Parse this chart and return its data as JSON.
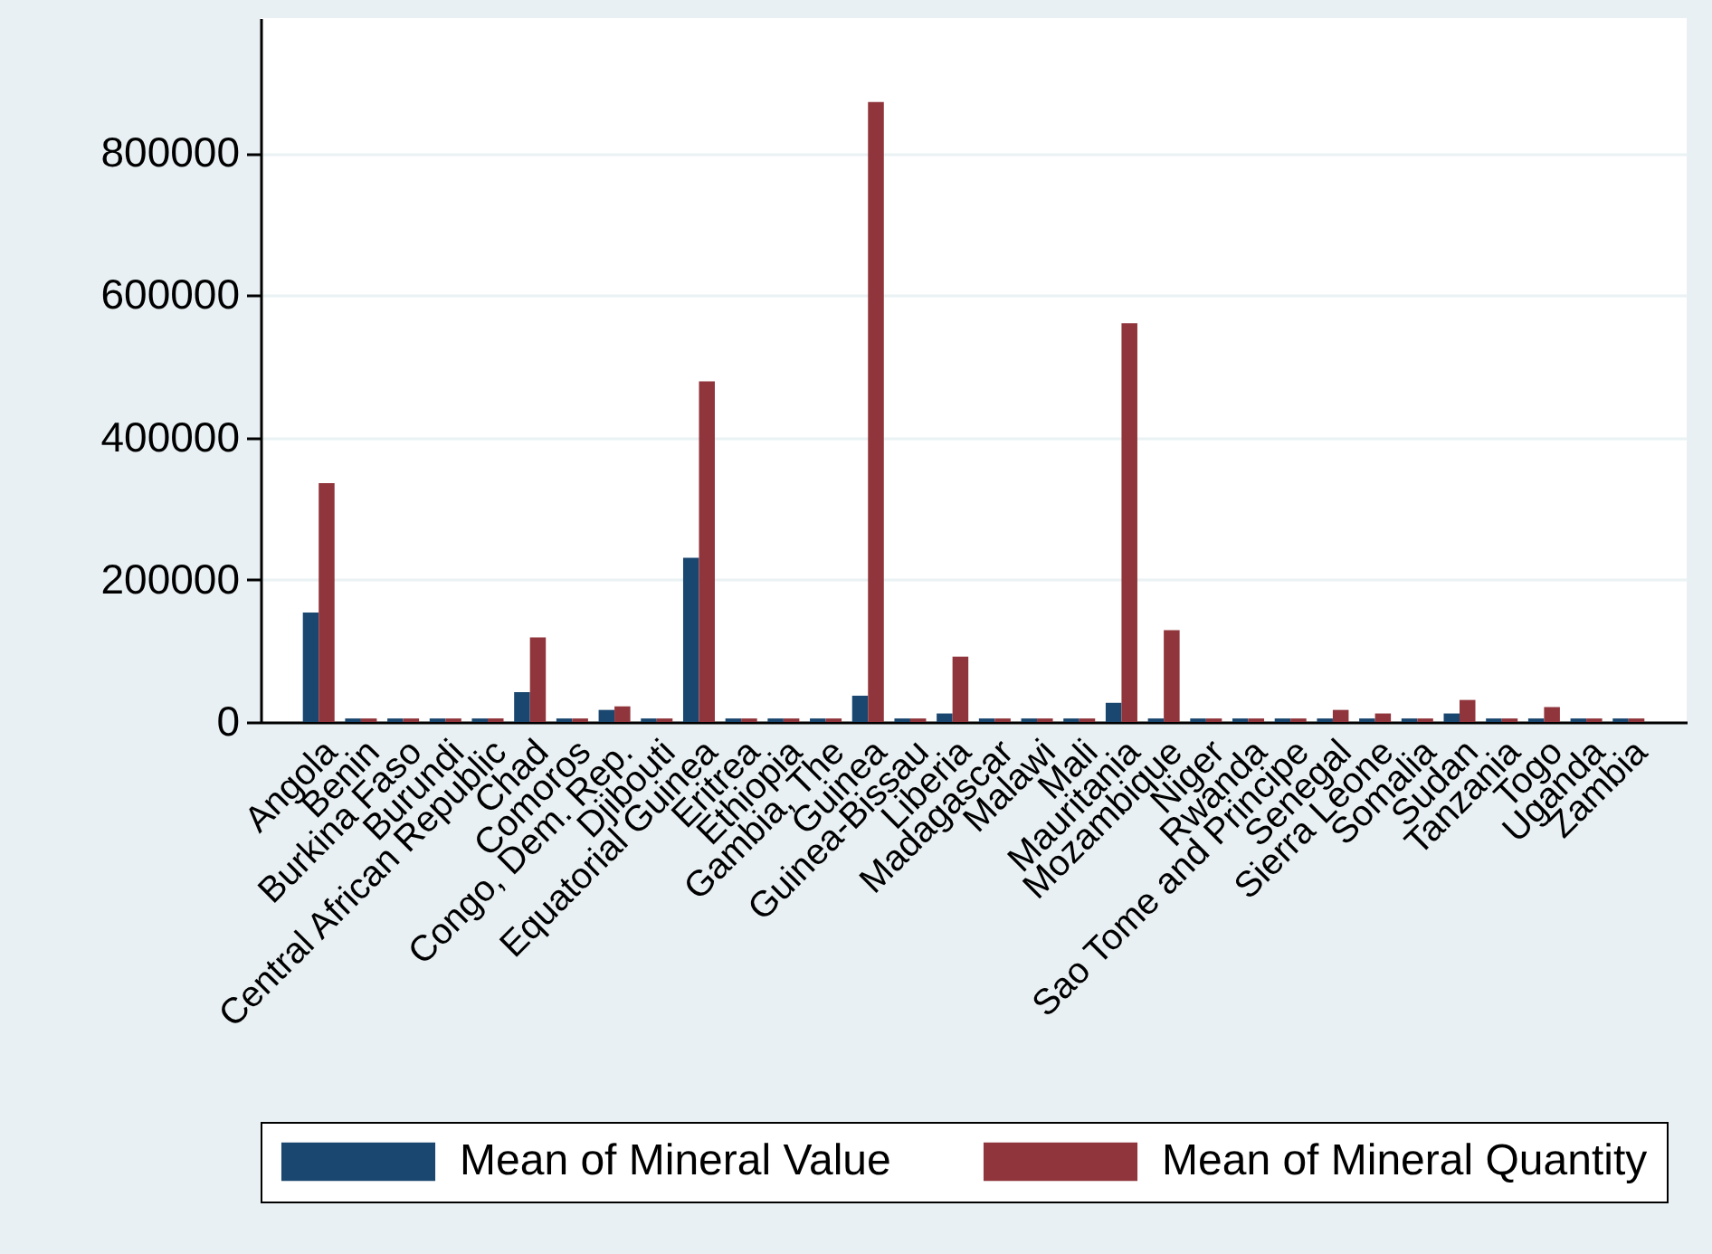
{
  "chart_data": {
    "type": "bar",
    "categories": [
      "Angola",
      "Benin",
      "Burkina Faso",
      "Burundi",
      "Central African Republic",
      "Chad",
      "Comoros",
      "Congo, Dem. Rep.",
      "Djibouti",
      "Equatorial Guinea",
      "Eritrea",
      "Ethiopia",
      "Gambia, The",
      "Guinea",
      "Guinea-Bissau",
      "Liberia",
      "Madagascar",
      "Malawi",
      "Mali",
      "Mauritania",
      "Mozambique",
      "Niger",
      "Rwanda",
      "Sao Tome and Principe",
      "Senegal",
      "Sierra Leone",
      "Somalia",
      "Sudan",
      "Tanzania",
      "Togo",
      "Uganda",
      "Zambia"
    ],
    "series": [
      {
        "name": "Mean of Mineral Value",
        "color": "#1a476f",
        "values": [
          154000,
          5000,
          5000,
          5000,
          5000,
          42000,
          5000,
          17000,
          5000,
          231000,
          5000,
          5000,
          5000,
          37000,
          5000,
          12000,
          5000,
          5000,
          5000,
          27000,
          5000,
          5000,
          5000,
          5000,
          5000,
          5000,
          5000,
          12000,
          5000,
          5000,
          5000,
          5000
        ]
      },
      {
        "name": "Mean of Mineral Quantity",
        "color": "#90353b",
        "values": [
          336000,
          5000,
          5000,
          5000,
          5000,
          119000,
          5000,
          22000,
          5000,
          479000,
          5000,
          5000,
          5000,
          872000,
          5000,
          92000,
          5000,
          5000,
          5000,
          561000,
          129000,
          5000,
          5000,
          5000,
          17000,
          12000,
          5000,
          31000,
          5000,
          21000,
          5000,
          5000
        ]
      }
    ],
    "ylim": [
      0,
      990000
    ],
    "yticks": [
      0,
      200000,
      400000,
      600000,
      800000
    ],
    "grid": "y",
    "legend": "bottom"
  }
}
